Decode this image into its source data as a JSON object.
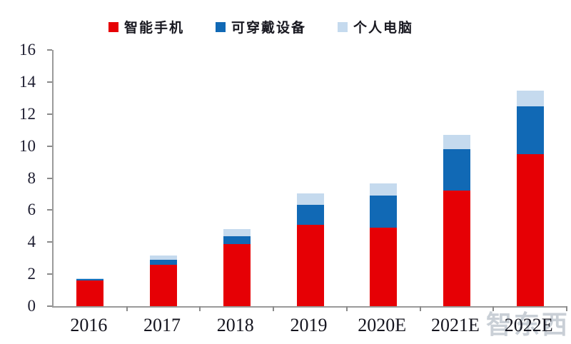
{
  "legend": {
    "items": [
      {
        "label": "智能手机",
        "color": "#e60005"
      },
      {
        "label": "可穿戴设备",
        "color": "#1169b5"
      },
      {
        "label": "个人电脑",
        "color": "#c5daee"
      }
    ]
  },
  "chart_data": {
    "type": "bar",
    "stacked": true,
    "categories": [
      "2016",
      "2017",
      "2018",
      "2019",
      "2020E",
      "2021E",
      "2022E"
    ],
    "series": [
      {
        "name": "智能手机",
        "color": "#e60005",
        "values": [
          1.6,
          2.6,
          3.9,
          5.1,
          4.9,
          7.2,
          9.5
        ]
      },
      {
        "name": "可穿戴设备",
        "color": "#1169b5",
        "values": [
          0.1,
          0.3,
          0.45,
          1.25,
          2.0,
          2.6,
          3.0
        ]
      },
      {
        "name": "个人电脑",
        "color": "#c5daee",
        "values": [
          0.05,
          0.25,
          0.45,
          0.7,
          0.75,
          0.9,
          0.95
        ]
      }
    ],
    "totals": [
      1.75,
      3.15,
      4.8,
      7.05,
      7.65,
      10.7,
      13.45
    ],
    "title": "",
    "xlabel": "",
    "ylabel": "",
    "ylim": [
      0,
      16
    ],
    "yticks": [
      0,
      2,
      4,
      6,
      8,
      10,
      12,
      14,
      16
    ],
    "grid": false,
    "legend_position": "top"
  },
  "watermark": "智东西"
}
